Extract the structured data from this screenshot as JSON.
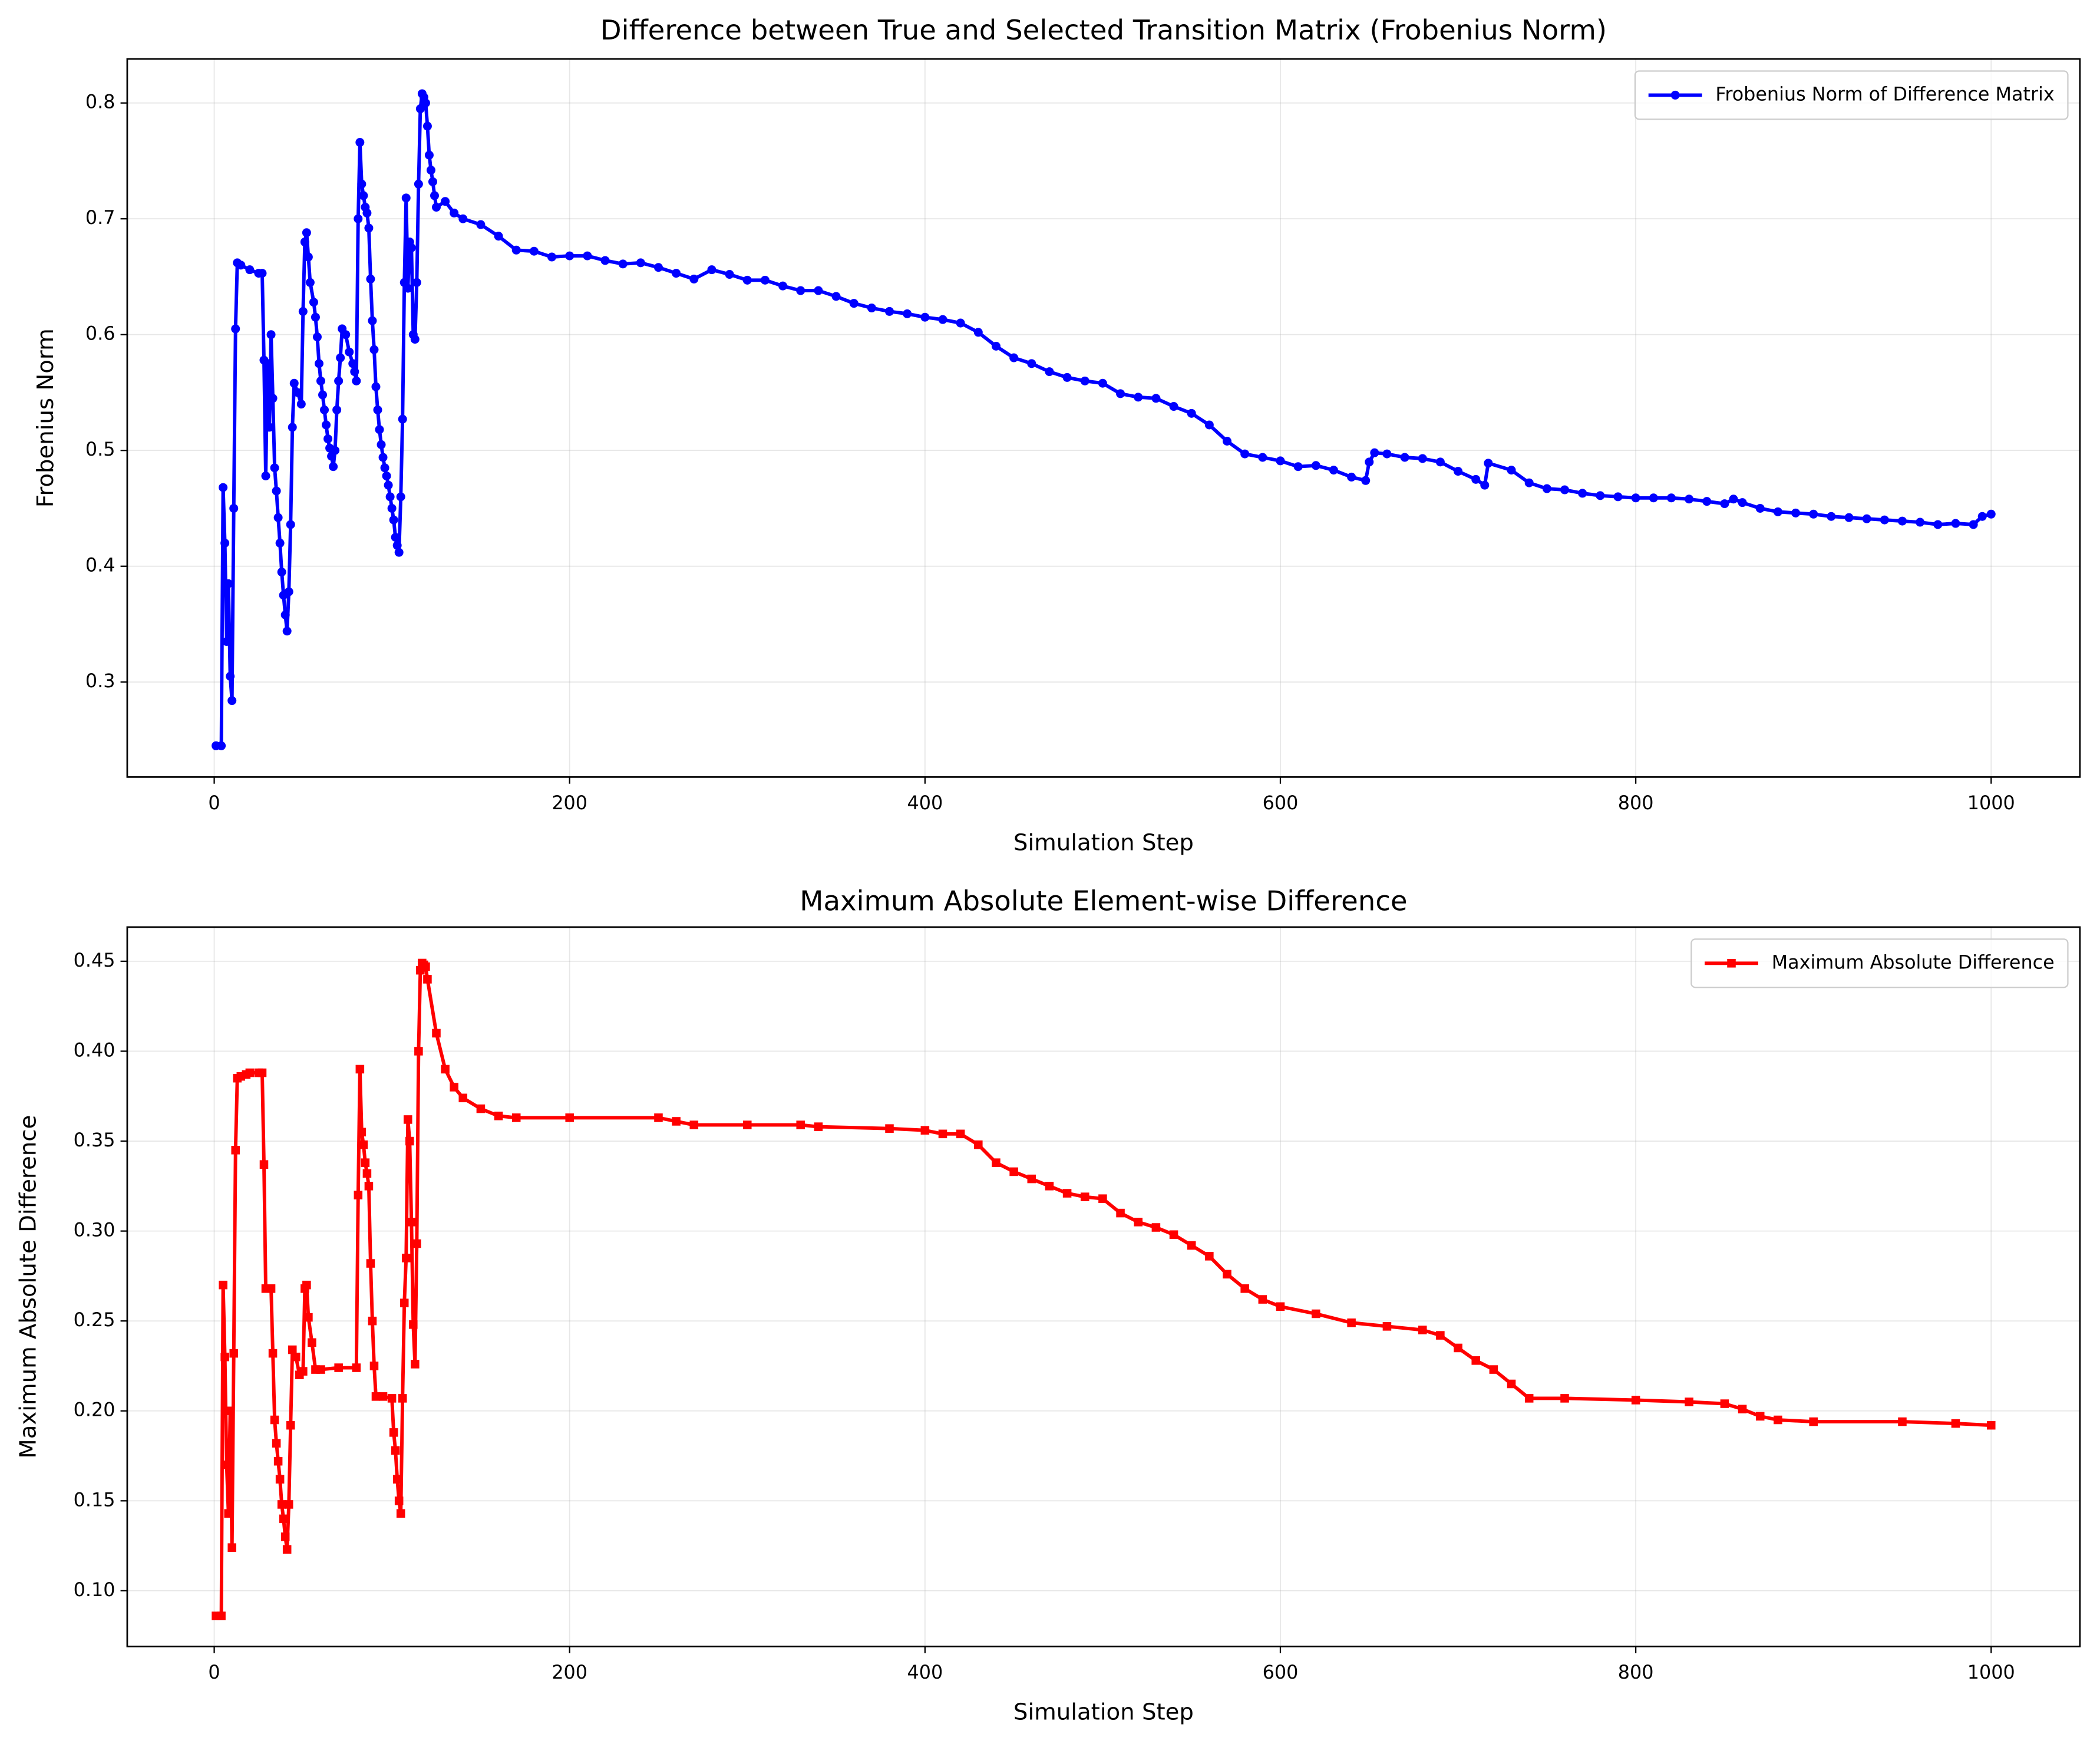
{
  "chart_data": [
    {
      "type": "line",
      "title": "Difference between True and Selected Transition Matrix (Frobenius Norm)",
      "xlabel": "Simulation Step",
      "ylabel": "Frobenius Norm",
      "x": [
        1,
        4,
        5,
        6,
        7,
        8,
        9,
        10,
        11,
        12,
        13,
        15,
        20,
        25,
        27,
        28,
        29,
        30,
        31,
        32,
        33,
        34,
        35,
        36,
        37,
        38,
        39,
        40,
        41,
        42,
        43,
        44,
        45,
        47,
        49,
        50,
        51,
        52,
        53,
        54,
        56,
        57,
        58,
        59,
        60,
        61,
        62,
        63,
        64,
        65,
        66,
        67,
        68,
        69,
        70,
        71,
        72,
        74,
        76,
        78,
        79,
        80,
        81,
        82,
        83,
        84,
        85,
        86,
        87,
        88,
        89,
        90,
        91,
        92,
        93,
        94,
        95,
        96,
        97,
        98,
        99,
        100,
        101,
        102,
        103,
        104,
        105,
        106,
        107,
        108,
        109,
        110,
        111,
        112,
        113,
        114,
        115,
        116,
        117,
        118,
        119,
        120,
        121,
        122,
        123,
        124,
        125,
        130,
        135,
        140,
        150,
        160,
        170,
        180,
        190,
        200,
        210,
        220,
        230,
        240,
        250,
        260,
        270,
        280,
        290,
        300,
        310,
        320,
        330,
        340,
        350,
        360,
        370,
        380,
        390,
        400,
        410,
        420,
        430,
        440,
        450,
        460,
        470,
        480,
        490,
        500,
        510,
        520,
        530,
        540,
        550,
        560,
        570,
        580,
        590,
        600,
        610,
        620,
        630,
        640,
        648,
        650,
        653,
        660,
        670,
        680,
        690,
        700,
        710,
        715,
        717,
        730,
        740,
        750,
        760,
        770,
        780,
        790,
        800,
        810,
        820,
        830,
        840,
        850,
        855,
        860,
        870,
        880,
        890,
        900,
        910,
        920,
        930,
        940,
        950,
        960,
        970,
        980,
        990,
        995,
        1000
      ],
      "series": [
        {
          "name": "Frobenius Norm of Difference Matrix",
          "color": "#0000ff",
          "marker": "circle",
          "values": [
            0.245,
            0.245,
            0.468,
            0.42,
            0.335,
            0.385,
            0.305,
            0.284,
            0.45,
            0.605,
            0.662,
            0.66,
            0.656,
            0.653,
            0.653,
            0.578,
            0.478,
            0.575,
            0.52,
            0.6,
            0.545,
            0.485,
            0.465,
            0.442,
            0.42,
            0.395,
            0.375,
            0.358,
            0.344,
            0.378,
            0.436,
            0.52,
            0.558,
            0.55,
            0.54,
            0.62,
            0.68,
            0.688,
            0.667,
            0.645,
            0.628,
            0.615,
            0.598,
            0.575,
            0.56,
            0.548,
            0.535,
            0.522,
            0.51,
            0.502,
            0.495,
            0.486,
            0.5,
            0.535,
            0.56,
            0.58,
            0.605,
            0.6,
            0.585,
            0.575,
            0.568,
            0.56,
            0.7,
            0.766,
            0.73,
            0.72,
            0.71,
            0.705,
            0.692,
            0.648,
            0.612,
            0.587,
            0.555,
            0.535,
            0.518,
            0.505,
            0.494,
            0.485,
            0.478,
            0.47,
            0.46,
            0.45,
            0.44,
            0.425,
            0.418,
            0.412,
            0.46,
            0.527,
            0.645,
            0.718,
            0.64,
            0.68,
            0.675,
            0.6,
            0.596,
            0.645,
            0.73,
            0.795,
            0.808,
            0.805,
            0.8,
            0.78,
            0.755,
            0.742,
            0.732,
            0.72,
            0.71,
            0.715,
            0.705,
            0.7,
            0.695,
            0.685,
            0.673,
            0.672,
            0.667,
            0.668,
            0.668,
            0.664,
            0.661,
            0.662,
            0.658,
            0.653,
            0.648,
            0.656,
            0.652,
            0.647,
            0.647,
            0.642,
            0.638,
            0.638,
            0.633,
            0.627,
            0.623,
            0.62,
            0.618,
            0.615,
            0.613,
            0.61,
            0.602,
            0.59,
            0.58,
            0.575,
            0.568,
            0.563,
            0.56,
            0.558,
            0.549,
            0.546,
            0.545,
            0.538,
            0.532,
            0.522,
            0.508,
            0.497,
            0.494,
            0.491,
            0.486,
            0.487,
            0.483,
            0.477,
            0.474,
            0.49,
            0.498,
            0.497,
            0.494,
            0.493,
            0.49,
            0.482,
            0.475,
            0.47,
            0.489,
            0.483,
            0.472,
            0.467,
            0.466,
            0.463,
            0.461,
            0.46,
            0.459,
            0.459,
            0.459,
            0.458,
            0.456,
            0.454,
            0.458,
            0.455,
            0.45,
            0.447,
            0.446,
            0.445,
            0.443,
            0.442,
            0.441,
            0.44,
            0.439,
            0.438,
            0.436,
            0.437,
            0.436,
            0.443,
            0.445
          ]
        }
      ],
      "xlim": [
        -48.95,
        1049.95
      ],
      "ylim": [
        0.218,
        0.838
      ],
      "xticks": [
        0,
        200,
        400,
        600,
        800,
        1000
      ],
      "yticks": [
        0.3,
        0.4,
        0.5,
        0.6,
        0.7,
        0.8
      ],
      "grid": true,
      "legend": "upper right"
    },
    {
      "type": "line",
      "title": "Maximum Absolute Element-wise Difference",
      "xlabel": "Simulation Step",
      "ylabel": "Maximum Absolute Difference",
      "x": [
        1,
        4,
        5,
        6,
        7,
        8,
        9,
        10,
        11,
        12,
        13,
        15,
        18,
        20,
        25,
        27,
        28,
        29,
        32,
        33,
        34,
        35,
        36,
        37,
        38,
        39,
        40,
        41,
        42,
        43,
        44,
        46,
        48,
        50,
        51,
        52,
        53,
        55,
        57,
        60,
        70,
        80,
        81,
        82,
        83,
        84,
        85,
        86,
        87,
        88,
        89,
        90,
        91,
        95,
        100,
        101,
        102,
        103,
        104,
        105,
        106,
        107,
        108,
        109,
        110,
        111,
        112,
        113,
        114,
        115,
        116,
        117,
        118,
        119,
        120,
        125,
        130,
        135,
        140,
        150,
        160,
        170,
        200,
        250,
        260,
        270,
        300,
        330,
        340,
        380,
        400,
        410,
        420,
        430,
        440,
        450,
        460,
        470,
        480,
        490,
        500,
        510,
        520,
        530,
        540,
        550,
        560,
        570,
        580,
        590,
        600,
        620,
        640,
        660,
        680,
        690,
        700,
        710,
        720,
        730,
        740,
        760,
        800,
        830,
        850,
        860,
        870,
        880,
        900,
        950,
        980,
        1000
      ],
      "series": [
        {
          "name": "Maximum Absolute Difference",
          "color": "#ff0000",
          "marker": "square",
          "values": [
            0.086,
            0.086,
            0.27,
            0.23,
            0.17,
            0.143,
            0.2,
            0.124,
            0.232,
            0.345,
            0.385,
            0.386,
            0.387,
            0.388,
            0.388,
            0.388,
            0.337,
            0.268,
            0.268,
            0.232,
            0.195,
            0.182,
            0.172,
            0.162,
            0.148,
            0.14,
            0.13,
            0.123,
            0.148,
            0.192,
            0.234,
            0.23,
            0.22,
            0.222,
            0.268,
            0.27,
            0.252,
            0.238,
            0.223,
            0.223,
            0.224,
            0.224,
            0.32,
            0.39,
            0.355,
            0.348,
            0.338,
            0.332,
            0.325,
            0.282,
            0.25,
            0.225,
            0.208,
            0.208,
            0.207,
            0.188,
            0.178,
            0.162,
            0.15,
            0.143,
            0.207,
            0.26,
            0.285,
            0.362,
            0.35,
            0.305,
            0.248,
            0.226,
            0.293,
            0.4,
            0.445,
            0.449,
            0.448,
            0.447,
            0.44,
            0.41,
            0.39,
            0.38,
            0.374,
            0.368,
            0.364,
            0.363,
            0.363,
            0.363,
            0.361,
            0.359,
            0.359,
            0.359,
            0.358,
            0.357,
            0.356,
            0.354,
            0.354,
            0.348,
            0.338,
            0.333,
            0.329,
            0.325,
            0.321,
            0.319,
            0.318,
            0.31,
            0.305,
            0.302,
            0.298,
            0.292,
            0.286,
            0.276,
            0.268,
            0.262,
            0.258,
            0.254,
            0.249,
            0.247,
            0.245,
            0.242,
            0.235,
            0.228,
            0.223,
            0.215,
            0.207,
            0.207,
            0.206,
            0.205,
            0.204,
            0.201,
            0.197,
            0.195,
            0.194,
            0.194,
            0.193,
            0.192
          ]
        }
      ],
      "xlim": [
        -48.95,
        1049.95
      ],
      "ylim": [
        0.069,
        0.469
      ],
      "xticks": [
        0,
        200,
        400,
        600,
        800,
        1000
      ],
      "yticks": [
        {
          "value": 0.1,
          "label": "0.10"
        },
        0.15,
        {
          "value": 0.2,
          "label": "0.20"
        },
        0.25,
        {
          "value": 0.3,
          "label": "0.30"
        },
        0.35,
        {
          "value": 0.4,
          "label": "0.40"
        },
        0.45
      ],
      "grid": true,
      "legend": "upper right"
    }
  ]
}
